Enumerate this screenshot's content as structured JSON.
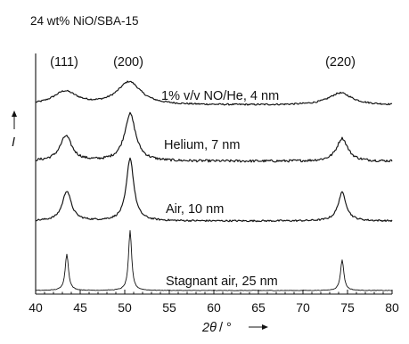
{
  "chart_data": {
    "type": "line",
    "title": "24 wt% NiO/SBA-15",
    "xlabel_symbol": "2θ",
    "xlabel_unit": "/ °",
    "ylabel": "I",
    "xlim": [
      40,
      80
    ],
    "x_ticks": [
      40,
      45,
      50,
      55,
      60,
      65,
      70,
      75,
      80
    ],
    "y_ticks_shown": false,
    "reflections": [
      {
        "label": "(111)",
        "x": 43.3
      },
      {
        "label": "(200)",
        "x": 50.5
      },
      {
        "label": "(220)",
        "x": 74.3
      }
    ],
    "series": [
      {
        "name": "1% v/v NO/He, 4 nm",
        "offset_order": 4,
        "peaks": [
          {
            "x": 43.3,
            "height": 0.22,
            "fwhm": 3.2
          },
          {
            "x": 50.5,
            "height": 0.38,
            "fwhm": 3.2
          },
          {
            "x": 74.2,
            "height": 0.2,
            "fwhm": 3.2
          }
        ],
        "noise": 0.013
      },
      {
        "name": "Helium, 7 nm",
        "offset_order": 3,
        "peaks": [
          {
            "x": 43.4,
            "height": 0.36,
            "fwhm": 1.6
          },
          {
            "x": 50.6,
            "height": 0.68,
            "fwhm": 1.5
          },
          {
            "x": 74.4,
            "height": 0.33,
            "fwhm": 1.5
          }
        ],
        "noise": 0.018
      },
      {
        "name": "Air, 10 nm",
        "offset_order": 2,
        "peaks": [
          {
            "x": 43.5,
            "height": 0.42,
            "fwhm": 1.2
          },
          {
            "x": 50.6,
            "height": 0.88,
            "fwhm": 1.0
          },
          {
            "x": 74.4,
            "height": 0.4,
            "fwhm": 1.1
          }
        ],
        "noise": 0.012
      },
      {
        "name": "Stagnant air, 25 nm",
        "offset_order": 1,
        "peaks": [
          {
            "x": 43.5,
            "height": 0.5,
            "fwhm": 0.45
          },
          {
            "x": 50.6,
            "height": 0.82,
            "fwhm": 0.42
          },
          {
            "x": 74.4,
            "height": 0.42,
            "fwhm": 0.45
          }
        ],
        "noise": 0.004
      }
    ],
    "legend": "none",
    "grid": false
  }
}
